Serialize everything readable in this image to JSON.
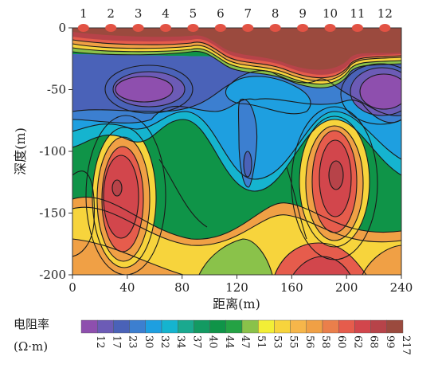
{
  "chart_data": {
    "type": "heatmap",
    "xlabel": "距离(m)",
    "ylabel": "深度(m)",
    "xlim": [
      0,
      240
    ],
    "ylim": [
      -200,
      0
    ],
    "x_ticks": [
      "0",
      "40",
      "80",
      "120",
      "160",
      "200",
      "240"
    ],
    "y_ticks": [
      "0",
      "-50",
      "-100",
      "-150",
      "-200"
    ],
    "stations": [
      "1",
      "2",
      "3",
      "4",
      "5",
      "6",
      "7",
      "8",
      "9",
      "10",
      "11",
      "12"
    ],
    "station_x": [
      8,
      28,
      48,
      68,
      88,
      108,
      128,
      148,
      168,
      188,
      208,
      228
    ],
    "legend": {
      "title": "电阻率",
      "unit": "(Ω·m)",
      "values": [
        "12",
        "17",
        "23",
        "30",
        "32",
        "34",
        "37",
        "40",
        "44",
        "47",
        "51",
        "53",
        "55",
        "56",
        "58",
        "60",
        "62",
        "68",
        "99",
        "217"
      ],
      "colors": [
        "#8e4fae",
        "#6c5bb6",
        "#4a62b8",
        "#3c7fd0",
        "#1e9fe0",
        "#15b4cf",
        "#1aa98f",
        "#139a62",
        "#0f9448",
        "#24a244",
        "#8ac24a",
        "#f2ee36",
        "#f7d43c",
        "#f6b64a",
        "#f0a045",
        "#ea7f4b",
        "#e65c4c",
        "#d2464c",
        "#b74349",
        "#9b4a3e"
      ]
    },
    "contour_features": [
      {
        "type": "high",
        "x": 32,
        "y": -130,
        "value": 99
      },
      {
        "type": "high",
        "x": 196,
        "y": -120,
        "value": 99
      },
      {
        "type": "low",
        "x": 60,
        "y": -45,
        "value": 12
      },
      {
        "type": "low",
        "x": 232,
        "y": -50,
        "value": 12
      },
      {
        "type": "low",
        "x": 128,
        "y": -108,
        "value": 23
      }
    ]
  }
}
